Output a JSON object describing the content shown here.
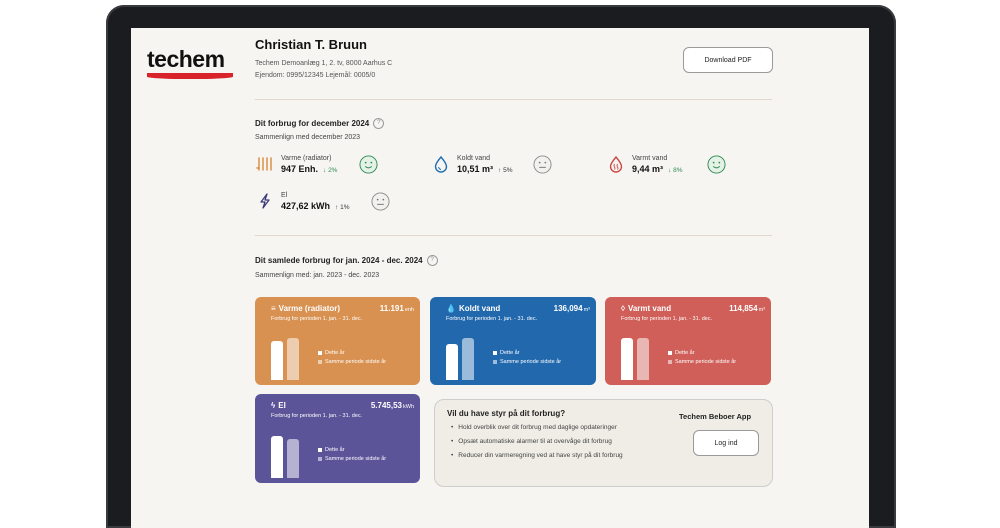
{
  "header": {
    "logo_text": "techem",
    "name": "Christian T. Bruun",
    "address": "Techem Demoanlæg 1, 2. tv, 8000 Aarhus C",
    "property": "Ejendom: 0995/12345  Lejemål: 0005/0",
    "download_label": "Download PDF"
  },
  "monthly": {
    "title": "Dit forbrug for december 2024",
    "help": "?",
    "subtitle": "Sammenlign med december 2023",
    "metrics": [
      {
        "label": "Varme (radiator)",
        "value": "947 Enh.",
        "change": "↓ 2%",
        "direction": "down",
        "icon": "radiator-icon",
        "mood": "happy",
        "color": "#d9893b"
      },
      {
        "label": "Koldt vand",
        "value": "10,51 m³",
        "change": "↑ 5%",
        "direction": "up",
        "icon": "water-drop-icon",
        "mood": "neutral",
        "color": "#1f6fb0"
      },
      {
        "label": "Varmt vand",
        "value": "9,44 m³",
        "change": "↓ 8%",
        "direction": "down",
        "icon": "hot-water-icon",
        "mood": "happy",
        "color": "#c94a44"
      },
      {
        "label": "El",
        "value": "427,62 kWh",
        "change": "↑ 1%",
        "direction": "up",
        "icon": "lightning-icon",
        "mood": "neutral",
        "color": "#3d3a7a"
      }
    ]
  },
  "yearly": {
    "title": "Dit samlede forbrug for jan. 2024 - dec. 2024",
    "help": "?",
    "subtitle": "Sammenlign med: jan. 2023 - dec. 2023",
    "cards": [
      {
        "title": "Varme (radiator)",
        "value": "11.191",
        "unit": "enh",
        "period": "Forbrug for perioden 1. jan. - 31. dec.",
        "color": "#d89150",
        "icon": "radiator-icon",
        "current_fraction": 0.93,
        "previous_fraction": 1.0
      },
      {
        "title": "Koldt vand",
        "value": "136,094",
        "unit": "m³",
        "period": "Forbrug for perioden 1. jan. - 31. dec.",
        "color": "#2168ad",
        "icon": "water-drop-icon",
        "current_fraction": 0.85,
        "previous_fraction": 1.0
      },
      {
        "title": "Varmt vand",
        "value": "114,854",
        "unit": "m³",
        "period": "Forbrug for perioden 1. jan. - 31. dec.",
        "color": "#cf5f58",
        "icon": "hot-water-icon",
        "current_fraction": 1.0,
        "previous_fraction": 1.0
      },
      {
        "title": "El",
        "value": "5.745,53",
        "unit": "kWh",
        "period": "Forbrug for perioden 1. jan. - 31. dec.",
        "color": "#5b5499",
        "icon": "lightning-icon",
        "current_fraction": 1.0,
        "previous_fraction": 0.93
      }
    ],
    "legend_current": "Dette år",
    "legend_previous": "Samme periode sidste år"
  },
  "promo": {
    "title": "Vil du have styr på dit forbrug?",
    "bullets": [
      "Hold overblik over dit forbrug med daglige opdateringer",
      "Opsæt automatiske alarmer til at overvåge dit forbrug",
      "Reducer din varmeregning ved at have styr på dit forbrug"
    ],
    "app_name": "Techem Beboer App",
    "login_label": "Log ind"
  },
  "colors": {
    "brand_red": "#d8232a",
    "saving_green": "#2f8a52"
  }
}
